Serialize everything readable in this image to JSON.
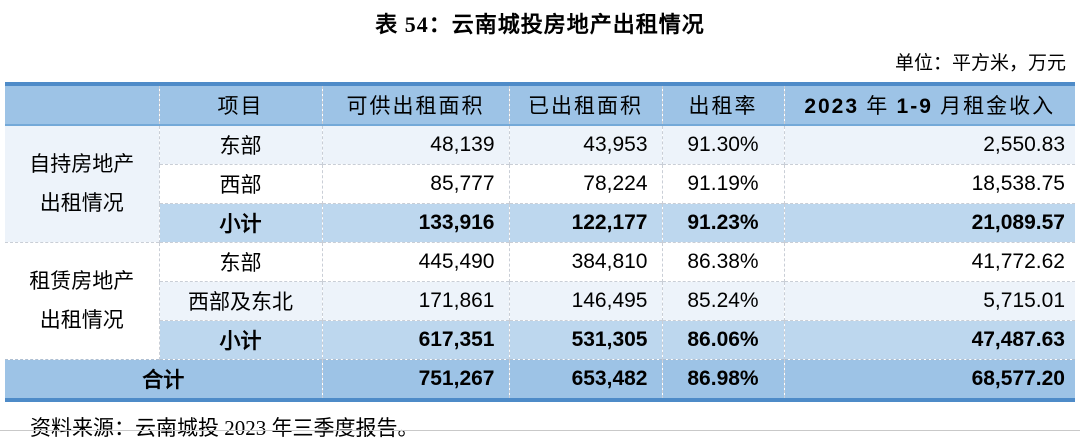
{
  "title": "表 54：云南城投房地产出租情况",
  "unit_note": "单位：平方米，万元",
  "table": {
    "headers": {
      "group": "",
      "item": "项目",
      "available": "可供出租面积",
      "rented": "已出租面积",
      "rate": "出租率",
      "income_parts": {
        "year": "2023",
        "year_unit": " 年 ",
        "range": "1-9",
        "suffix": " 月租金收入"
      }
    },
    "groups": [
      {
        "label": "自持房地产出租情况"
      },
      {
        "label": "租赁房地产出租情况"
      }
    ],
    "rows": [
      {
        "item": "东部",
        "available": "48,139",
        "rented": "43,953",
        "rate": "91.30%",
        "income": "2,550.83"
      },
      {
        "item": "西部",
        "available": "85,777",
        "rented": "78,224",
        "rate": "91.19%",
        "income": "18,538.75"
      },
      {
        "item": "小计",
        "available": "133,916",
        "rented": "122,177",
        "rate": "91.23%",
        "income": "21,089.57"
      },
      {
        "item": "东部",
        "available": "445,490",
        "rented": "384,810",
        "rate": "86.38%",
        "income": "41,772.62"
      },
      {
        "item": "西部及东北",
        "available": "171,861",
        "rented": "146,495",
        "rate": "85.24%",
        "income": "5,715.01"
      },
      {
        "item": "小计",
        "available": "617,351",
        "rented": "531,305",
        "rate": "86.06%",
        "income": "47,487.63"
      }
    ],
    "total": {
      "label": "合计",
      "available": "751,267",
      "rented": "653,482",
      "rate": "86.98%",
      "income": "68,577.20"
    }
  },
  "source_note": "资料来源：云南城投 2023 年三季度报告。",
  "colors": {
    "header_fill": "#9DC3E6",
    "subtotal_fill": "#BDD7EE",
    "band_fill": "#EDF3FA",
    "accent_border": "#4E8BC8"
  }
}
